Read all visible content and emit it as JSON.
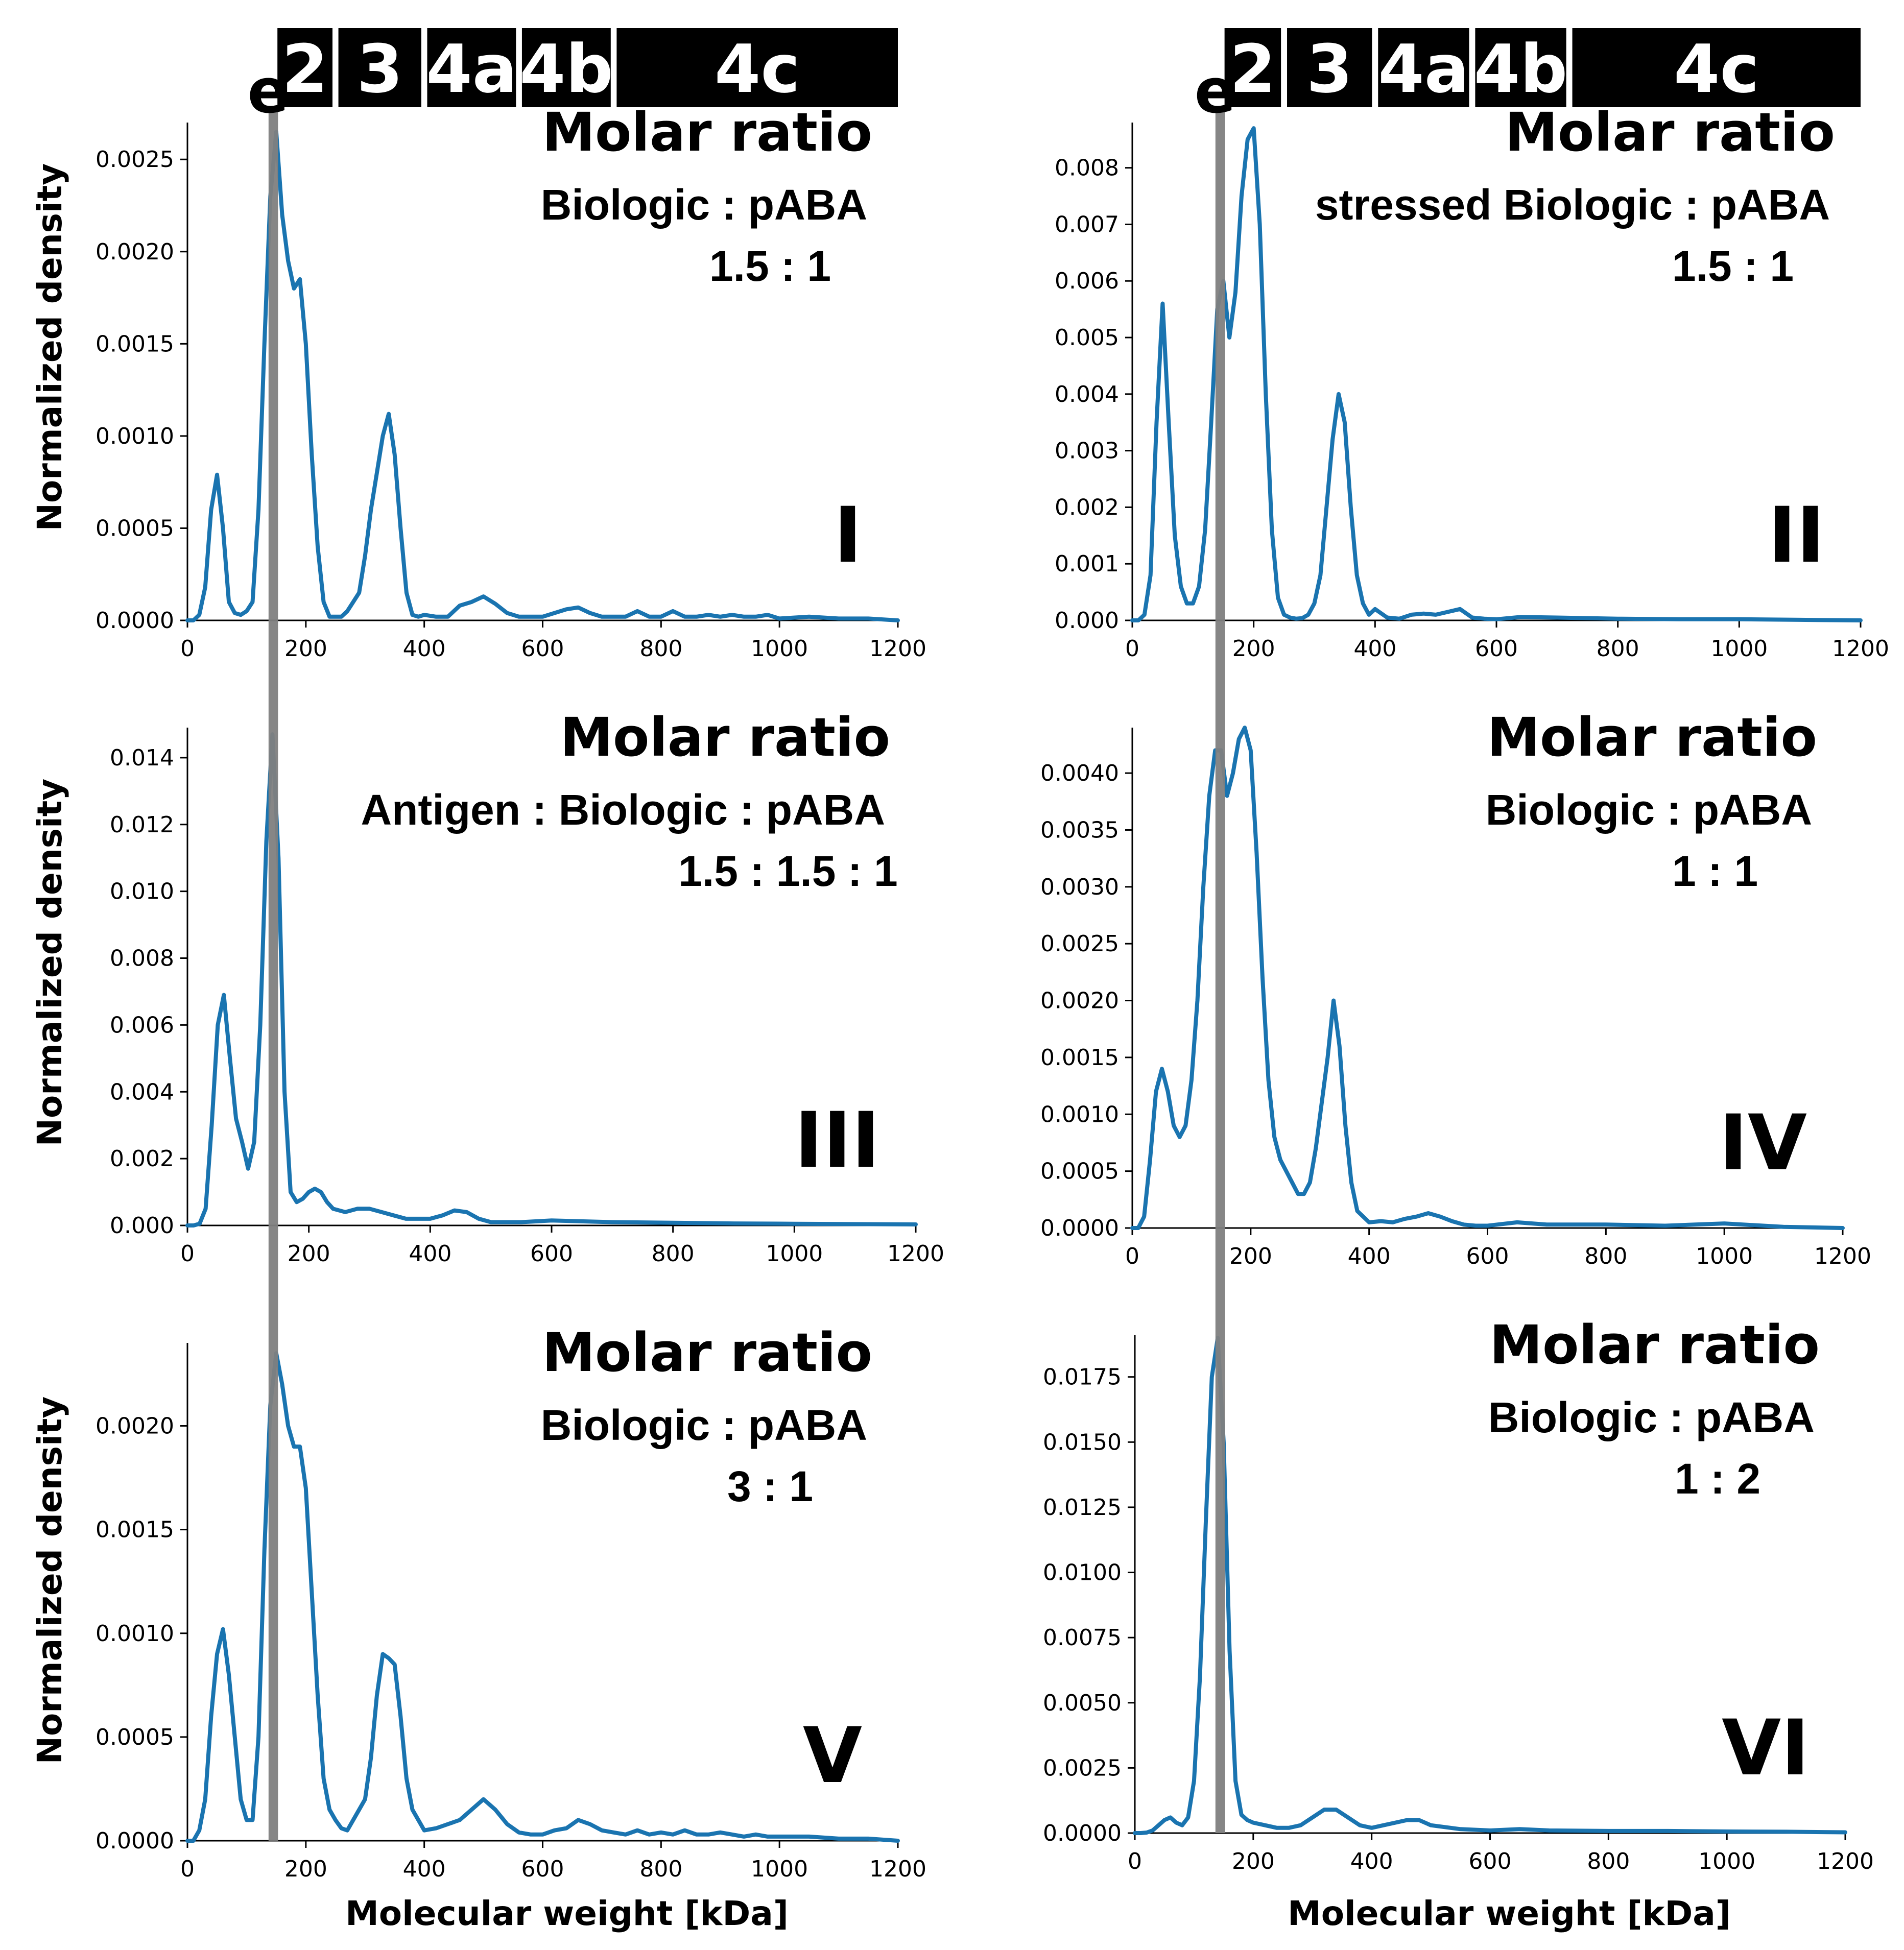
{
  "figure": {
    "band": {
      "label": "e",
      "center_kda": 145,
      "halfwidth_kda": 8,
      "color": "#808080"
    },
    "line_color": "#1a74b0",
    "top_bars": [
      {
        "label": "2",
        "from": 152,
        "to": 245
      },
      {
        "label": "3",
        "from": 255,
        "to": 395
      },
      {
        "label": "4a",
        "from": 405,
        "to": 555
      },
      {
        "label": "4b",
        "from": 565,
        "to": 715
      },
      {
        "label": "4c",
        "from": 725,
        "to": 1200
      }
    ],
    "xlabel": "Molecular weight [kDa]",
    "ylabel": "Normalized density"
  },
  "chart_data": [
    {
      "type": "line",
      "panel": "I",
      "xlim": [
        0,
        1200
      ],
      "ylim": [
        0,
        0.0027
      ],
      "xticks": [
        "0",
        "200",
        "400",
        "600",
        "800",
        "1000",
        "1200"
      ],
      "yticks": [
        "0.0000",
        "0.0005",
        "0.0010",
        "0.0015",
        "0.0020",
        "0.0025"
      ],
      "ytick_values": [
        0,
        0.0005,
        0.001,
        0.0015,
        0.002,
        0.0025
      ],
      "title": "Molar ratio",
      "subtitle": "Biologic : pABA",
      "ratio": "1.5 : 1",
      "x": [
        0,
        10,
        20,
        30,
        40,
        50,
        60,
        70,
        80,
        90,
        100,
        110,
        120,
        130,
        140,
        150,
        160,
        170,
        180,
        190,
        200,
        210,
        220,
        230,
        240,
        250,
        260,
        270,
        280,
        290,
        300,
        310,
        320,
        330,
        340,
        350,
        360,
        370,
        380,
        390,
        400,
        420,
        440,
        460,
        480,
        500,
        520,
        540,
        560,
        580,
        600,
        620,
        640,
        660,
        680,
        700,
        720,
        740,
        760,
        780,
        800,
        820,
        840,
        860,
        880,
        900,
        920,
        940,
        960,
        980,
        1000,
        1050,
        1100,
        1150,
        1200
      ],
      "y": [
        0,
        0,
        3e-05,
        0.00018,
        0.0006,
        0.00079,
        0.0005,
        0.0001,
        4e-05,
        3e-05,
        5e-05,
        0.0001,
        0.0006,
        0.0015,
        0.0023,
        0.00265,
        0.0022,
        0.00195,
        0.0018,
        0.00185,
        0.0015,
        0.0009,
        0.0004,
        0.0001,
        2e-05,
        2e-05,
        2e-05,
        5e-05,
        0.0001,
        0.00015,
        0.00035,
        0.0006,
        0.0008,
        0.001,
        0.00112,
        0.0009,
        0.0005,
        0.00015,
        3e-05,
        2e-05,
        3e-05,
        2e-05,
        2e-05,
        8e-05,
        0.0001,
        0.00013,
        9e-05,
        4e-05,
        2e-05,
        2e-05,
        2e-05,
        4e-05,
        6e-05,
        7e-05,
        4e-05,
        2e-05,
        2e-05,
        2e-05,
        5e-05,
        2e-05,
        2e-05,
        5e-05,
        2e-05,
        2e-05,
        3e-05,
        2e-05,
        3e-05,
        2e-05,
        2e-05,
        3e-05,
        1e-05,
        2e-05,
        1e-05,
        1e-05,
        0
      ]
    },
    {
      "type": "line",
      "panel": "II",
      "xlim": [
        0,
        1200
      ],
      "ylim": [
        0,
        0.0088
      ],
      "xticks": [
        "0",
        "200",
        "400",
        "600",
        "800",
        "1000",
        "1200"
      ],
      "yticks": [
        "0.000",
        "0.001",
        "0.002",
        "0.003",
        "0.004",
        "0.005",
        "0.006",
        "0.007",
        "0.008"
      ],
      "ytick_values": [
        0,
        0.001,
        0.002,
        0.003,
        0.004,
        0.005,
        0.006,
        0.007,
        0.008
      ],
      "title": "Molar ratio",
      "subtitle": "stressed Biologic : pABA",
      "ratio": "1.5 : 1",
      "x": [
        0,
        10,
        20,
        30,
        40,
        50,
        60,
        70,
        80,
        90,
        100,
        110,
        120,
        130,
        140,
        150,
        160,
        170,
        180,
        190,
        200,
        210,
        220,
        230,
        240,
        250,
        260,
        270,
        280,
        290,
        300,
        310,
        320,
        330,
        340,
        350,
        360,
        370,
        380,
        390,
        400,
        420,
        440,
        460,
        480,
        500,
        520,
        540,
        560,
        580,
        600,
        640,
        700,
        800,
        900,
        1000,
        1100,
        1200
      ],
      "y": [
        0,
        0,
        0.0001,
        0.0008,
        0.0035,
        0.0056,
        0.0035,
        0.0015,
        0.0006,
        0.0003,
        0.0003,
        0.0006,
        0.0016,
        0.0035,
        0.0055,
        0.006,
        0.005,
        0.0058,
        0.0075,
        0.0085,
        0.0087,
        0.007,
        0.004,
        0.0016,
        0.0004,
        0.0001,
        5e-05,
        3e-05,
        4e-05,
        0.0001,
        0.0003,
        0.0008,
        0.002,
        0.0032,
        0.004,
        0.0035,
        0.002,
        0.0008,
        0.0003,
        0.0001,
        0.0002,
        5e-05,
        3e-05,
        0.0001,
        0.00012,
        0.0001,
        0.00015,
        0.0002,
        5e-05,
        3e-05,
        2e-05,
        6e-05,
        5e-05,
        3e-05,
        2e-05,
        2e-05,
        1e-05,
        0
      ]
    },
    {
      "type": "line",
      "panel": "III",
      "xlim": [
        0,
        1200
      ],
      "ylim": [
        0,
        0.0149
      ],
      "xticks": [
        "0",
        "200",
        "400",
        "600",
        "800",
        "1000",
        "1200"
      ],
      "yticks": [
        "0.000",
        "0.002",
        "0.004",
        "0.006",
        "0.008",
        "0.010",
        "0.012",
        "0.014"
      ],
      "ytick_values": [
        0,
        0.002,
        0.004,
        0.006,
        0.008,
        0.01,
        0.012,
        0.014
      ],
      "title": "Molar ratio",
      "subtitle": "Antigen : Biologic : pABA",
      "ratio": "1.5 : 1.5 : 1",
      "x": [
        0,
        10,
        20,
        30,
        40,
        50,
        60,
        70,
        80,
        90,
        100,
        110,
        120,
        130,
        140,
        150,
        160,
        170,
        180,
        190,
        200,
        210,
        220,
        230,
        240,
        260,
        280,
        300,
        320,
        340,
        360,
        380,
        400,
        420,
        440,
        460,
        480,
        500,
        550,
        600,
        700,
        800,
        900,
        1000,
        1100,
        1200
      ],
      "y": [
        0,
        0,
        5e-05,
        0.0005,
        0.003,
        0.006,
        0.0069,
        0.005,
        0.0032,
        0.0025,
        0.0017,
        0.0025,
        0.006,
        0.0115,
        0.0147,
        0.011,
        0.004,
        0.001,
        0.0007,
        0.0008,
        0.001,
        0.0011,
        0.001,
        0.0007,
        0.0005,
        0.0004,
        0.0005,
        0.0005,
        0.0004,
        0.0003,
        0.0002,
        0.0002,
        0.0002,
        0.0003,
        0.00045,
        0.0004,
        0.0002,
        0.0001,
        0.0001,
        0.00015,
        0.0001,
        8e-05,
        6e-05,
        5e-05,
        4e-05,
        3e-05
      ]
    },
    {
      "type": "line",
      "panel": "IV",
      "xlim": [
        0,
        1200
      ],
      "ylim": [
        0,
        0.0044
      ],
      "xticks": [
        "0",
        "200",
        "400",
        "600",
        "800",
        "1000",
        "1200"
      ],
      "yticks": [
        "0.0000",
        "0.0005",
        "0.0010",
        "0.0015",
        "0.0020",
        "0.0025",
        "0.0030",
        "0.0035",
        "0.0040"
      ],
      "ytick_values": [
        0,
        0.0005,
        0.001,
        0.0015,
        0.002,
        0.0025,
        0.003,
        0.0035,
        0.004
      ],
      "title": "Molar ratio",
      "subtitle": "Biologic : pABA",
      "ratio": "1 : 1",
      "x": [
        0,
        10,
        20,
        30,
        40,
        50,
        60,
        70,
        80,
        90,
        100,
        110,
        120,
        130,
        140,
        150,
        160,
        170,
        180,
        190,
        200,
        210,
        220,
        230,
        240,
        250,
        260,
        270,
        280,
        290,
        300,
        310,
        320,
        330,
        340,
        350,
        360,
        370,
        380,
        390,
        400,
        420,
        440,
        460,
        480,
        500,
        520,
        540,
        560,
        580,
        600,
        650,
        700,
        800,
        900,
        1000,
        1100,
        1200
      ],
      "y": [
        0,
        0,
        0.0001,
        0.0006,
        0.0012,
        0.0014,
        0.0012,
        0.0009,
        0.0008,
        0.0009,
        0.0013,
        0.002,
        0.003,
        0.0038,
        0.0042,
        0.0042,
        0.0038,
        0.004,
        0.0043,
        0.0044,
        0.0042,
        0.0033,
        0.0022,
        0.0013,
        0.0008,
        0.0006,
        0.0005,
        0.0004,
        0.0003,
        0.0003,
        0.0004,
        0.0007,
        0.0011,
        0.0015,
        0.002,
        0.0016,
        0.0009,
        0.0004,
        0.00015,
        0.0001,
        5e-05,
        6e-05,
        5e-05,
        8e-05,
        0.0001,
        0.00013,
        0.0001,
        6e-05,
        3e-05,
        2e-05,
        2e-05,
        5e-05,
        3e-05,
        3e-05,
        2e-05,
        4e-05,
        1e-05,
        0
      ]
    },
    {
      "type": "line",
      "panel": "V",
      "xlim": [
        0,
        1200
      ],
      "ylim": [
        0,
        0.0024
      ],
      "xticks": [
        "0",
        "200",
        "400",
        "600",
        "800",
        "1000",
        "1200"
      ],
      "yticks": [
        "0.0000",
        "0.0005",
        "0.0010",
        "0.0015",
        "0.0020"
      ],
      "ytick_values": [
        0,
        0.0005,
        0.001,
        0.0015,
        0.002
      ],
      "title": "Molar ratio",
      "subtitle": "Biologic : pABA",
      "ratio": "3 : 1",
      "x": [
        0,
        10,
        20,
        30,
        40,
        50,
        60,
        70,
        80,
        90,
        100,
        110,
        120,
        130,
        140,
        150,
        160,
        170,
        180,
        190,
        200,
        210,
        220,
        230,
        240,
        250,
        260,
        270,
        280,
        290,
        300,
        310,
        320,
        330,
        340,
        350,
        360,
        370,
        380,
        390,
        400,
        420,
        440,
        460,
        480,
        500,
        520,
        540,
        560,
        580,
        600,
        620,
        640,
        660,
        680,
        700,
        720,
        740,
        760,
        780,
        800,
        820,
        840,
        860,
        880,
        900,
        920,
        940,
        960,
        980,
        1000,
        1050,
        1100,
        1150,
        1200
      ],
      "y": [
        0,
        0,
        5e-05,
        0.0002,
        0.0006,
        0.0009,
        0.00102,
        0.0008,
        0.0005,
        0.0002,
        0.0001,
        0.0001,
        0.0005,
        0.0014,
        0.0021,
        0.00235,
        0.0022,
        0.002,
        0.0019,
        0.0019,
        0.0017,
        0.0012,
        0.0007,
        0.0003,
        0.00015,
        0.0001,
        6e-05,
        5e-05,
        0.0001,
        0.00015,
        0.0002,
        0.0004,
        0.0007,
        0.0009,
        0.00088,
        0.00085,
        0.0006,
        0.0003,
        0.00015,
        0.0001,
        5e-05,
        6e-05,
        8e-05,
        0.0001,
        0.00015,
        0.0002,
        0.00015,
        8e-05,
        4e-05,
        3e-05,
        3e-05,
        5e-05,
        6e-05,
        0.0001,
        8e-05,
        5e-05,
        4e-05,
        3e-05,
        5e-05,
        3e-05,
        4e-05,
        3e-05,
        5e-05,
        3e-05,
        3e-05,
        4e-05,
        3e-05,
        2e-05,
        3e-05,
        2e-05,
        2e-05,
        2e-05,
        1e-05,
        1e-05,
        0
      ]
    },
    {
      "type": "line",
      "panel": "VI",
      "xlim": [
        0,
        1200
      ],
      "ylim": [
        0,
        0.0191
      ],
      "xticks": [
        "0",
        "200",
        "400",
        "600",
        "800",
        "1000",
        "1200"
      ],
      "yticks": [
        "0.0000",
        "0.0025",
        "0.0050",
        "0.0075",
        "0.0100",
        "0.0125",
        "0.0150",
        "0.0175"
      ],
      "ytick_values": [
        0,
        0.0025,
        0.005,
        0.0075,
        0.01,
        0.0125,
        0.015,
        0.0175
      ],
      "title": "Molar ratio",
      "subtitle": "Biologic : pABA",
      "ratio": "1 : 2",
      "x": [
        0,
        10,
        20,
        30,
        40,
        50,
        60,
        70,
        80,
        90,
        100,
        110,
        120,
        130,
        140,
        150,
        160,
        170,
        180,
        190,
        200,
        220,
        240,
        260,
        280,
        300,
        320,
        340,
        360,
        380,
        400,
        420,
        440,
        460,
        480,
        500,
        550,
        600,
        650,
        700,
        800,
        900,
        1000,
        1100,
        1200
      ],
      "y": [
        0,
        0,
        2e-05,
        0.0001,
        0.0003,
        0.0005,
        0.0006,
        0.0004,
        0.0003,
        0.0006,
        0.002,
        0.006,
        0.012,
        0.0175,
        0.019,
        0.015,
        0.007,
        0.002,
        0.0007,
        0.0005,
        0.0004,
        0.0003,
        0.0002,
        0.0002,
        0.0003,
        0.0006,
        0.0009,
        0.0009,
        0.0006,
        0.0003,
        0.0002,
        0.0003,
        0.0004,
        0.0005,
        0.0005,
        0.0003,
        0.00015,
        0.0001,
        0.00015,
        0.0001,
        8e-05,
        8e-05,
        6e-05,
        5e-05,
        3e-05
      ]
    }
  ]
}
